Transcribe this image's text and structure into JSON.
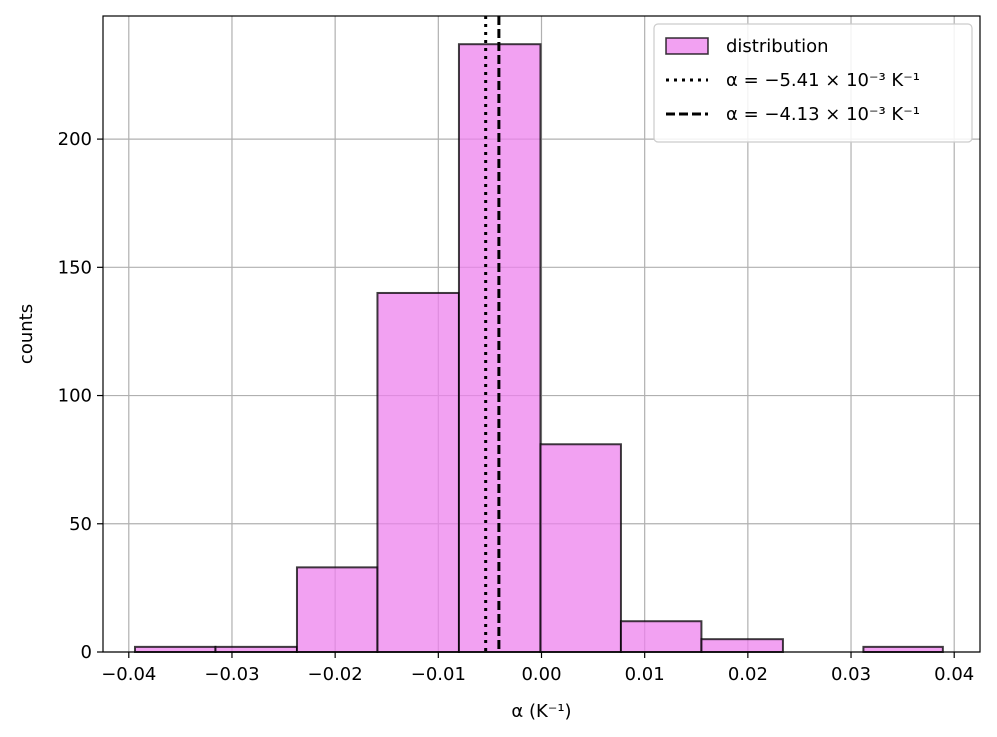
{
  "chart_data": {
    "type": "bar",
    "subtype": "histogram",
    "xlabel": "α (K⁻¹)",
    "ylabel": "counts",
    "xlim": [
      -0.0425,
      0.0425
    ],
    "ylim": [
      0,
      248
    ],
    "grid": true,
    "legend_position": "top-right",
    "bar_color": "#ee82ee",
    "bar_edge_color": "#000000",
    "bins": [
      {
        "x0": -0.0394,
        "x1": -0.0316,
        "count": 2
      },
      {
        "x0": -0.0316,
        "x1": -0.0237,
        "count": 2
      },
      {
        "x0": -0.0237,
        "x1": -0.0159,
        "count": 33
      },
      {
        "x0": -0.0159,
        "x1": -0.008,
        "count": 140
      },
      {
        "x0": -0.008,
        "x1": -0.0001,
        "count": 237
      },
      {
        "x0": -0.0001,
        "x1": 0.0077,
        "count": 81
      },
      {
        "x0": 0.0077,
        "x1": 0.0155,
        "count": 12
      },
      {
        "x0": 0.0155,
        "x1": 0.0234,
        "count": 5
      },
      {
        "x0": 0.0234,
        "x1": 0.0312,
        "count": 0
      },
      {
        "x0": 0.0312,
        "x1": 0.0389,
        "count": 2
      }
    ],
    "vlines": [
      {
        "x": -0.00541,
        "style": "dotted",
        "color": "#000000"
      },
      {
        "x": -0.00413,
        "style": "dashed",
        "color": "#000000"
      }
    ],
    "xticks": [
      -0.04,
      -0.03,
      -0.02,
      -0.01,
      0.0,
      0.01,
      0.02,
      0.03,
      0.04
    ],
    "xtick_labels": [
      "−0.04",
      "−0.03",
      "−0.02",
      "−0.01",
      "0.00",
      "0.01",
      "0.02",
      "0.03",
      "0.04"
    ],
    "yticks": [
      0,
      50,
      100,
      150,
      200
    ],
    "ytick_labels": [
      "0",
      "50",
      "100",
      "150",
      "200"
    ],
    "legend": [
      {
        "kind": "patch",
        "label": "distribution"
      },
      {
        "kind": "dotted",
        "label": "α = −5.41 × 10⁻³ K⁻¹"
      },
      {
        "kind": "dashed",
        "label": "α = −4.13 × 10⁻³ K⁻¹"
      }
    ]
  }
}
